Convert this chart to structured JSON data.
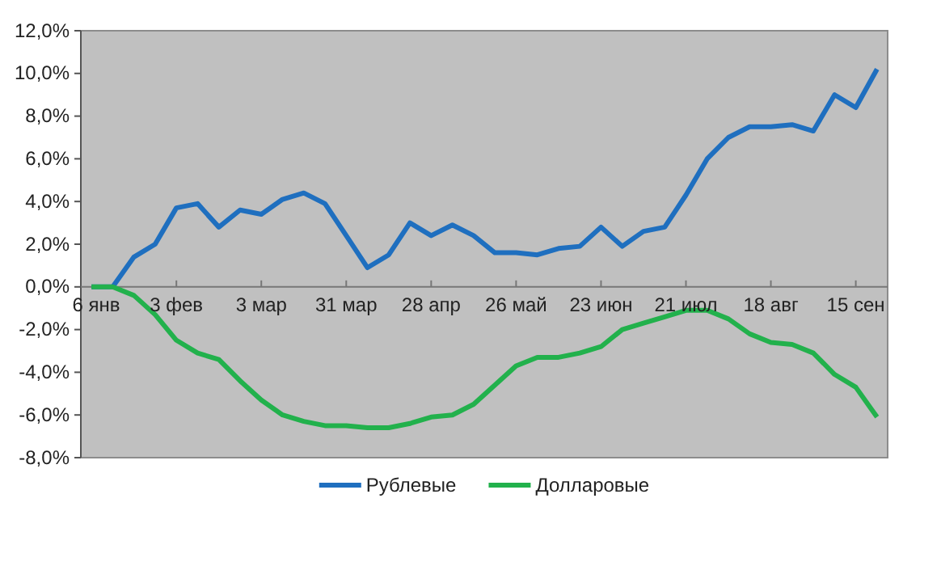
{
  "chart_data": {
    "type": "line",
    "categories": [
      "6 янв",
      null,
      null,
      null,
      "3 фев",
      null,
      null,
      null,
      "3 мар",
      null,
      null,
      null,
      "31 мар",
      null,
      null,
      null,
      "28 апр",
      null,
      null,
      null,
      "26 май",
      null,
      null,
      null,
      "23 июн",
      null,
      null,
      null,
      "21 июл",
      null,
      null,
      null,
      "18 авг",
      null,
      null,
      null,
      "15 сен",
      null
    ],
    "series": [
      {
        "name": "Рублевые",
        "color": "#1f6fbf",
        "values": [
          0,
          0,
          1.4,
          2.0,
          3.7,
          3.9,
          2.8,
          3.6,
          3.4,
          4.1,
          4.4,
          3.9,
          2.4,
          0.9,
          1.5,
          3.0,
          2.4,
          2.9,
          2.4,
          1.6,
          1.6,
          1.5,
          1.8,
          1.9,
          2.8,
          1.9,
          2.6,
          2.8,
          4.3,
          6.0,
          7.0,
          7.5,
          7.5,
          7.6,
          7.3,
          9.0,
          8.4,
          10.2
        ]
      },
      {
        "name": "Долларовые",
        "color": "#22b14c",
        "values": [
          0,
          0,
          -0.4,
          -1.3,
          -2.5,
          -3.1,
          -3.4,
          -4.4,
          -5.3,
          -6.0,
          -6.3,
          -6.5,
          -6.5,
          -6.6,
          -6.6,
          -6.4,
          -6.1,
          -6.0,
          -5.5,
          -4.6,
          -3.7,
          -3.3,
          -3.3,
          -3.1,
          -2.8,
          -2.0,
          -1.7,
          -1.4,
          -1.1,
          -1.1,
          -1.5,
          -2.2,
          -2.6,
          -2.7,
          -3.1,
          -4.1,
          -4.7,
          -6.1
        ]
      }
    ],
    "ylim": [
      -8,
      12
    ],
    "yticks": [
      {
        "value": -8,
        "label": "-8,0%"
      },
      {
        "value": -6,
        "label": "-6,0%"
      },
      {
        "value": -4,
        "label": "-4,0%"
      },
      {
        "value": -2,
        "label": "-2,0%"
      },
      {
        "value": 0,
        "label": "0,0%"
      },
      {
        "value": 2,
        "label": "2,0%"
      },
      {
        "value": 4,
        "label": "4,0%"
      },
      {
        "value": 6,
        "label": "6,0%"
      },
      {
        "value": 8,
        "label": "8,0%"
      },
      {
        "value": 10,
        "label": "10,0%"
      },
      {
        "value": 12,
        "label": "12,0%"
      }
    ],
    "grid": false,
    "legend": "bottom",
    "marker": "none",
    "line_style": "solid"
  }
}
